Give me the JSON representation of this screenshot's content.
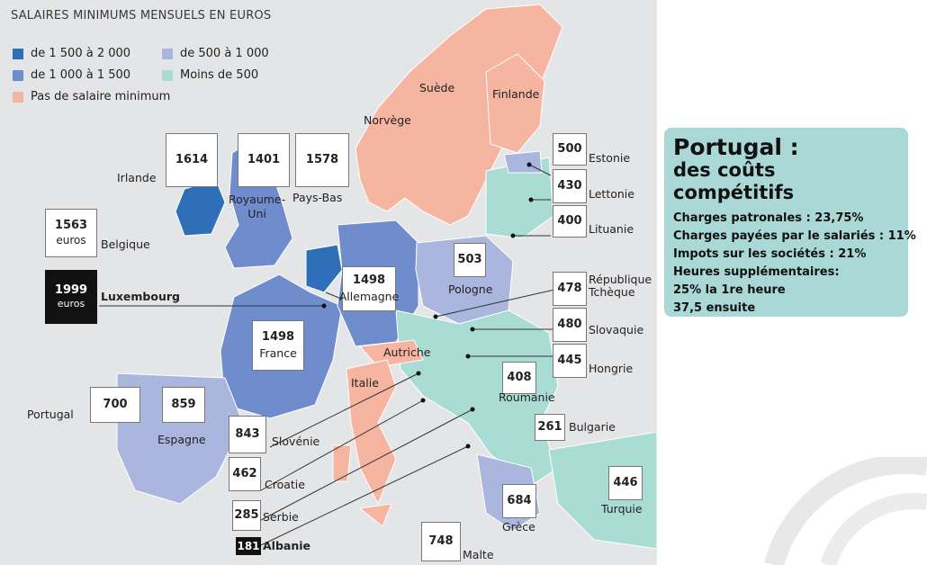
{
  "legend": {
    "title": "SALAIRES MINIMUMS MENSUELS EN EUROS",
    "items": [
      {
        "label": "de 1 500 à 2 000",
        "color": "#2e6fb7"
      },
      {
        "label": "de 500 à 1 000",
        "color": "#aab6de"
      },
      {
        "label": "de 1 000 à 1 500",
        "color": "#6f8ccc"
      },
      {
        "label": "Moins de 500",
        "color": "#a9dcd3"
      },
      {
        "label": "Pas de salaire minimum",
        "color": "#f6b5a0"
      }
    ]
  },
  "countries": {
    "irlande": {
      "name": "Irlande",
      "value": "1614"
    },
    "royaume_uni": {
      "name": "Royaume-\nUni",
      "value": "1401"
    },
    "pays_bas": {
      "name": "Pays-Bas",
      "value": "1578"
    },
    "belgique": {
      "name": "Belgique",
      "value": "1563",
      "unit": "euros"
    },
    "luxembourg": {
      "name": "Luxembourg",
      "value": "1999",
      "unit": "euros"
    },
    "allemagne": {
      "name": "Allemagne",
      "value": "1498"
    },
    "france": {
      "name": "France",
      "value": "1498"
    },
    "pologne": {
      "name": "Pologne",
      "value": "503"
    },
    "estonie": {
      "name": "Estonie",
      "value": "500"
    },
    "lettonie": {
      "name": "Lettonie",
      "value": "430"
    },
    "lituanie": {
      "name": "Lituanie",
      "value": "400"
    },
    "tcheque": {
      "name": "République\nTchèque",
      "value": "478"
    },
    "slovaquie": {
      "name": "Slovaquie",
      "value": "480"
    },
    "hongrie": {
      "name": "Hongrie",
      "value": "445"
    },
    "roumanie": {
      "name": "Roumanie",
      "value": "408"
    },
    "bulgarie": {
      "name": "Bulgarie",
      "value": "261"
    },
    "turquie": {
      "name": "Turquie",
      "value": "446"
    },
    "grece": {
      "name": "Grèce",
      "value": "684"
    },
    "malte": {
      "name": "Malte",
      "value": "748"
    },
    "albanie": {
      "name": "Albanie",
      "value": "181"
    },
    "serbie": {
      "name": "Serbie",
      "value": "285"
    },
    "croatie": {
      "name": "Croatie",
      "value": "462"
    },
    "slovenie": {
      "name": "Slovénie",
      "value": "843"
    },
    "espagne": {
      "name": "Espagne",
      "value": "859"
    },
    "portugal": {
      "name": "Portugal",
      "value": "700"
    }
  },
  "no_minimum": {
    "suede": "Suède",
    "finlande": "Finlande",
    "norvege": "Norvège",
    "autriche": "Autriche",
    "italie": "Italie"
  },
  "panel": {
    "title": "Portugal :",
    "subtitle": "des coûts compétitifs",
    "lines": [
      "Charges patronales : 23,75%",
      "Charges payées par le salariés : 11%",
      "Impots sur les sociétés : 21%",
      "Heures supplémentaires:",
      "25% la 1re heure",
      "37,5 ensuite"
    ]
  }
}
